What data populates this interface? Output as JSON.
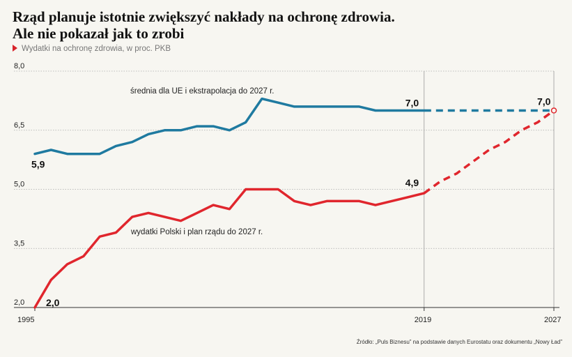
{
  "header": {
    "title_line1": "Rząd planuje istotnie zwiększyć nakłady na ochronę zdrowia.",
    "title_line2": "Ale nie pokazał jak to zrobi",
    "subtitle": "Wydatki  na ochronę zdrowia, w proc. PKB"
  },
  "source": "Źródło: „Puls Biznesu” na podstawie danych Eurostatu oraz dokumentu „Nowy Ład”",
  "colors": {
    "eu": "#1f7aa0",
    "pl": "#e0262d",
    "accent_triangle": "#d8232a",
    "background": "#f7f6f1"
  },
  "chart_data": {
    "type": "line",
    "title": "Wydatki  na ochronę zdrowia, w proc. PKB",
    "xlim": [
      1995,
      2027
    ],
    "ylim": [
      2.0,
      8.0
    ],
    "y_ticks": [
      "2,0",
      "3,5",
      "5,0",
      "6,5",
      "8,0"
    ],
    "y_tick_values": [
      2.0,
      3.5,
      5.0,
      6.5,
      8.0
    ],
    "x_ticks": [
      "1995",
      "2019",
      "2027"
    ],
    "x_tick_values": [
      1995,
      2019,
      2027
    ],
    "grid": "horizontal",
    "series": [
      {
        "name": "średnia dla UE i ekstrapolacja do 2027 r.",
        "color": "#1f7aa0",
        "points": [
          [
            1995,
            5.9
          ],
          [
            1996,
            6.0
          ],
          [
            1997,
            5.9
          ],
          [
            1998,
            5.9
          ],
          [
            1999,
            5.9
          ],
          [
            2000,
            6.1
          ],
          [
            2001,
            6.2
          ],
          [
            2002,
            6.4
          ],
          [
            2003,
            6.5
          ],
          [
            2004,
            6.5
          ],
          [
            2005,
            6.6
          ],
          [
            2006,
            6.6
          ],
          [
            2007,
            6.5
          ],
          [
            2008,
            6.7
          ],
          [
            2009,
            7.3
          ],
          [
            2010,
            7.2
          ],
          [
            2011,
            7.1
          ],
          [
            2012,
            7.1
          ],
          [
            2013,
            7.1
          ],
          [
            2014,
            7.1
          ],
          [
            2015,
            7.1
          ],
          [
            2016,
            7.0
          ],
          [
            2017,
            7.0
          ],
          [
            2018,
            7.0
          ],
          [
            2019,
            7.0
          ]
        ],
        "projection": [
          [
            2019,
            7.0
          ],
          [
            2027,
            7.0
          ]
        ]
      },
      {
        "name": "wydatki Polski i plan rządu do 2027 r.",
        "color": "#e0262d",
        "points": [
          [
            1995,
            2.0
          ],
          [
            1996,
            2.7
          ],
          [
            1997,
            3.1
          ],
          [
            1998,
            3.3
          ],
          [
            1999,
            3.8
          ],
          [
            2000,
            3.9
          ],
          [
            2001,
            4.3
          ],
          [
            2002,
            4.4
          ],
          [
            2003,
            4.3
          ],
          [
            2004,
            4.2
          ],
          [
            2005,
            4.4
          ],
          [
            2006,
            4.6
          ],
          [
            2007,
            4.5
          ],
          [
            2008,
            5.0
          ],
          [
            2009,
            5.0
          ],
          [
            2010,
            5.0
          ],
          [
            2011,
            4.7
          ],
          [
            2012,
            4.6
          ],
          [
            2013,
            4.7
          ],
          [
            2014,
            4.7
          ],
          [
            2015,
            4.7
          ],
          [
            2016,
            4.6
          ],
          [
            2017,
            4.7
          ],
          [
            2018,
            4.8
          ],
          [
            2019,
            4.9
          ]
        ],
        "projection": [
          [
            2019,
            4.9
          ],
          [
            2020,
            5.2
          ],
          [
            2021,
            5.4
          ],
          [
            2022,
            5.7
          ],
          [
            2023,
            6.0
          ],
          [
            2024,
            6.2
          ],
          [
            2025,
            6.5
          ],
          [
            2026,
            6.7
          ],
          [
            2027,
            7.0
          ]
        ]
      }
    ],
    "annotations": [
      {
        "text": "5,9",
        "x": 1995,
        "y": 5.9,
        "series": 0
      },
      {
        "text": "7,0",
        "x": 2019,
        "y": 7.0,
        "series": 0
      },
      {
        "text": "7,0",
        "x": 2027,
        "y": 7.0,
        "series": 0
      },
      {
        "text": "2,0",
        "x": 1995,
        "y": 2.0,
        "series": 1
      },
      {
        "text": "4,9",
        "x": 2019,
        "y": 4.9,
        "series": 1
      }
    ],
    "reference_lines_x": [
      2019,
      2027
    ]
  }
}
